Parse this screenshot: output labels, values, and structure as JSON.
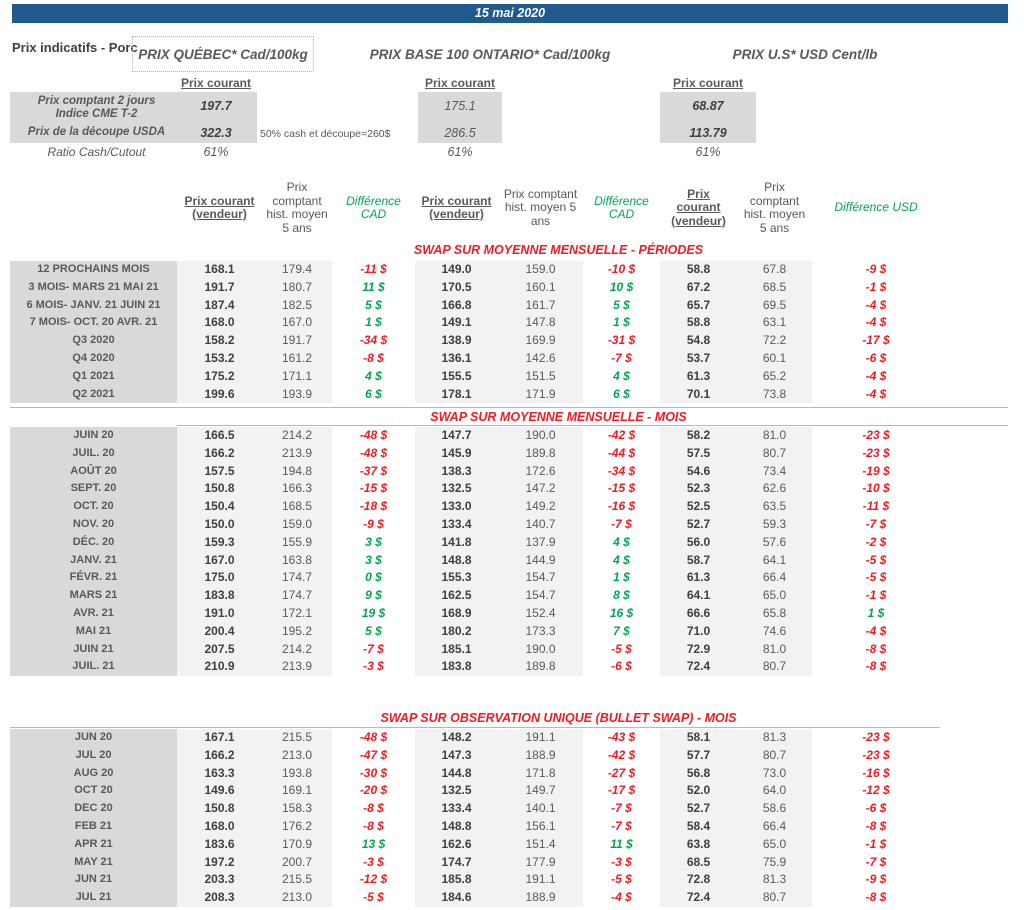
{
  "date_bar": {
    "date": "15 mai 2020"
  },
  "header": {
    "title": "Prix indicatifs - Porc",
    "quebec_title": "PRIX QUÉBEC* Cad/100kg",
    "ontario_title": "PRIX BASE 100 ONTARIO* Cad/100kg",
    "us_title": "PRIX U.S* USD Cent/lb",
    "prix_courant": "Prix courant"
  },
  "spot": {
    "row1_label": "Prix comptant 2 jours\nIndice CME T-2",
    "row2_label": "Prix de la découpe USDA",
    "row3_label": "Ratio Cash/Cutout",
    "note": "50% cash et découpe=260$",
    "quebec": {
      "cme": "197.7",
      "usda": "322.3",
      "ratio": "61%"
    },
    "ontario": {
      "cme": "175.1",
      "usda": "286.5",
      "ratio": "61%"
    },
    "us": {
      "cme": "68.87",
      "usda": "113.79",
      "ratio": "61%"
    }
  },
  "table_headers": {
    "current": "Prix courant (vendeur)",
    "hist": "Prix comptant hist. moyen 5 ans",
    "diff_cad": "Différence CAD",
    "diff_usd": "Différence USD"
  },
  "colors": {
    "accent_blue": "#1f5b8e",
    "positive_green": "#00a651",
    "negative_red": "#ec1c24",
    "section_title_red": "#ee1c25",
    "label_gray": "#d9d9d9",
    "value_gray": "#f2f2f2"
  },
  "sections": [
    {
      "title": "SWAP SUR MOYENNE MENSUELLE - PÉRIODES",
      "rows": [
        {
          "label": "12 PROCHAINS MOIS",
          "v": [
            168.1,
            179.4,
            -11,
            149.0,
            159.0,
            -10,
            58.8,
            67.8,
            -9
          ]
        },
        {
          "label": "3 MOIS- MARS 21 MAI 21",
          "v": [
            191.7,
            180.7,
            11,
            170.5,
            160.1,
            10,
            67.2,
            68.5,
            -1
          ]
        },
        {
          "label": "6 MOIS- JANV. 21 JUIN 21",
          "v": [
            187.4,
            182.5,
            5,
            166.8,
            161.7,
            5,
            65.7,
            69.5,
            -4
          ]
        },
        {
          "label": "7 MOIS- OCT. 20 AVR. 21",
          "v": [
            168.0,
            167.0,
            1,
            149.1,
            147.8,
            1,
            58.8,
            63.1,
            -4
          ]
        },
        {
          "label": "Q3 2020",
          "v": [
            158.2,
            191.7,
            -34,
            138.9,
            169.9,
            -31,
            54.8,
            72.2,
            -17
          ]
        },
        {
          "label": "Q4 2020",
          "v": [
            153.2,
            161.2,
            -8,
            136.1,
            142.6,
            -7,
            53.7,
            60.1,
            -6
          ]
        },
        {
          "label": "Q1 2021",
          "v": [
            175.2,
            171.1,
            4,
            155.5,
            151.5,
            4,
            61.3,
            65.2,
            -4
          ]
        },
        {
          "label": "Q2 2021",
          "v": [
            199.6,
            193.9,
            6,
            178.1,
            171.9,
            6,
            70.1,
            73.8,
            -4
          ]
        }
      ]
    },
    {
      "title": "SWAP SUR MOYENNE MENSUELLE - MOIS",
      "rows": [
        {
          "label": "JUIN 20",
          "v": [
            166.5,
            214.2,
            -48,
            147.7,
            190.0,
            -42,
            58.2,
            81.0,
            -23
          ]
        },
        {
          "label": "JUIL. 20",
          "v": [
            166.2,
            213.9,
            -48,
            145.9,
            189.8,
            -44,
            57.5,
            80.7,
            -23
          ]
        },
        {
          "label": "AOÛT 20",
          "v": [
            157.5,
            194.8,
            -37,
            138.3,
            172.6,
            -34,
            54.6,
            73.4,
            -19
          ]
        },
        {
          "label": "SEPT. 20",
          "v": [
            150.8,
            166.3,
            -15,
            132.5,
            147.2,
            -15,
            52.3,
            62.6,
            -10
          ]
        },
        {
          "label": "OCT. 20",
          "v": [
            150.4,
            168.5,
            -18,
            133.0,
            149.2,
            -16,
            52.5,
            63.5,
            -11
          ]
        },
        {
          "label": "NOV. 20",
          "v": [
            150.0,
            159.0,
            -9,
            133.4,
            140.7,
            -7,
            52.7,
            59.3,
            -7
          ]
        },
        {
          "label": "DÉC. 20",
          "v": [
            159.3,
            155.9,
            3,
            141.8,
            137.9,
            4,
            56.0,
            57.6,
            -2
          ]
        },
        {
          "label": "JANV. 21",
          "v": [
            167.0,
            163.8,
            3,
            148.8,
            144.9,
            4,
            58.7,
            64.1,
            -5
          ]
        },
        {
          "label": "FÉVR. 21",
          "v": [
            175.0,
            174.7,
            0,
            155.3,
            154.7,
            1,
            61.3,
            66.4,
            -5
          ]
        },
        {
          "label": "MARS 21",
          "v": [
            183.8,
            174.7,
            9,
            162.5,
            154.7,
            8,
            64.1,
            65.0,
            -1
          ]
        },
        {
          "label": "AVR. 21",
          "v": [
            191.0,
            172.1,
            19,
            168.9,
            152.4,
            16,
            66.6,
            65.8,
            1
          ]
        },
        {
          "label": "MAI 21",
          "v": [
            200.4,
            195.2,
            5,
            180.2,
            173.3,
            7,
            71.0,
            74.6,
            -4
          ]
        },
        {
          "label": "JUIN 21",
          "v": [
            207.5,
            214.2,
            -7,
            185.1,
            190.0,
            -5,
            72.9,
            81.0,
            -8
          ]
        },
        {
          "label": "JUIL. 21",
          "v": [
            210.9,
            213.9,
            -3,
            183.8,
            189.8,
            -6,
            72.4,
            80.7,
            -8
          ]
        }
      ]
    },
    {
      "title": "SWAP SUR OBSERVATION UNIQUE (BULLET SWAP) - MOIS",
      "rows": [
        {
          "label": "JUN 20",
          "v": [
            167.1,
            215.5,
            -48,
            148.2,
            191.1,
            -43,
            58.1,
            81.3,
            -23
          ]
        },
        {
          "label": "JUL 20",
          "v": [
            166.2,
            213.0,
            -47,
            147.3,
            188.9,
            -42,
            57.7,
            80.7,
            -23
          ]
        },
        {
          "label": "AUG 20",
          "v": [
            163.3,
            193.8,
            -30,
            144.8,
            171.8,
            -27,
            56.8,
            73.0,
            -16
          ]
        },
        {
          "label": "OCT 20",
          "v": [
            149.6,
            169.1,
            -20,
            132.5,
            149.7,
            -17,
            52.0,
            64.0,
            -12
          ]
        },
        {
          "label": "DEC 20",
          "v": [
            150.8,
            158.3,
            -8,
            133.4,
            140.1,
            -7,
            52.7,
            58.6,
            -6
          ]
        },
        {
          "label": "FEB 21",
          "v": [
            168.0,
            176.2,
            -8,
            148.8,
            156.1,
            -7,
            58.4,
            66.4,
            -8
          ]
        },
        {
          "label": "APR 21",
          "v": [
            183.6,
            170.9,
            13,
            162.6,
            151.4,
            11,
            63.8,
            65.0,
            -1
          ]
        },
        {
          "label": "MAY 21",
          "v": [
            197.2,
            200.7,
            -3,
            174.7,
            177.9,
            -3,
            68.5,
            75.9,
            -7
          ]
        },
        {
          "label": "JUN 21",
          "v": [
            203.3,
            215.5,
            -12,
            185.8,
            191.1,
            -5,
            72.8,
            81.3,
            -9
          ]
        },
        {
          "label": "JUL 21",
          "v": [
            208.3,
            213.0,
            -5,
            184.6,
            188.9,
            -4,
            72.4,
            80.7,
            -8
          ]
        }
      ]
    }
  ]
}
